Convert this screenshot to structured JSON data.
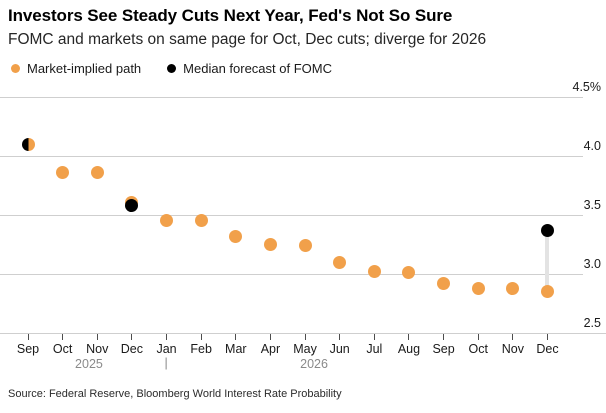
{
  "header": {
    "title": "Investors See Steady Cuts Next Year, Fed's Not So Sure",
    "subtitle": "FOMC and markets on same page for Oct, Dec cuts; diverge for 2026"
  },
  "source": "Source: Federal Reserve, Bloomberg World Interest Rate Probability",
  "colors": {
    "market_orange": "#F1A04A",
    "fomc_black": "#000000",
    "connector_gray": "#e3e3e3"
  },
  "chart_data": {
    "type": "scatter",
    "title": "Investors See Steady Cuts Next Year, Fed's Not So Sure",
    "subtitle": "FOMC and markets on same page for Oct, Dec cuts; diverge for 2026",
    "unit": "%",
    "x": [
      "Sep",
      "Oct",
      "Nov",
      "Dec",
      "Jan",
      "Feb",
      "Mar",
      "Apr",
      "May",
      "Jun",
      "Jul",
      "Aug",
      "Sep",
      "Oct",
      "Nov",
      "Dec"
    ],
    "year_groups": [
      {
        "label": "2025",
        "at_index": 1.76
      },
      {
        "label": "2026",
        "at_index": 8.26
      }
    ],
    "year_divider_index": 4,
    "series": [
      {
        "name": "Market-implied path",
        "color": "#F1A04A",
        "values": [
          4.1,
          3.86,
          3.86,
          3.61,
          3.45,
          3.45,
          3.32,
          3.25,
          3.24,
          3.1,
          3.02,
          3.01,
          2.92,
          2.88,
          2.88,
          2.85
        ]
      },
      {
        "name": "Median forecast of FOMC",
        "color": "#000000",
        "values": [
          4.1,
          null,
          null,
          3.58,
          null,
          null,
          null,
          null,
          null,
          null,
          null,
          null,
          null,
          null,
          null,
          3.37
        ]
      }
    ],
    "ylim": [
      2.5,
      4.5
    ],
    "yticks": [
      {
        "value": 4.5,
        "label": "4.5%"
      },
      {
        "value": 4.0,
        "label": "4.0"
      },
      {
        "value": 3.5,
        "label": "3.5"
      },
      {
        "value": 3.0,
        "label": "3.0"
      },
      {
        "value": 2.5,
        "label": "2.5"
      }
    ],
    "grid": "horizontal",
    "legend_position": "top-left",
    "annotations": {
      "dual_split_dot_index": 0,
      "connector_index": 15,
      "connector_color": "#e3e3e3"
    }
  }
}
